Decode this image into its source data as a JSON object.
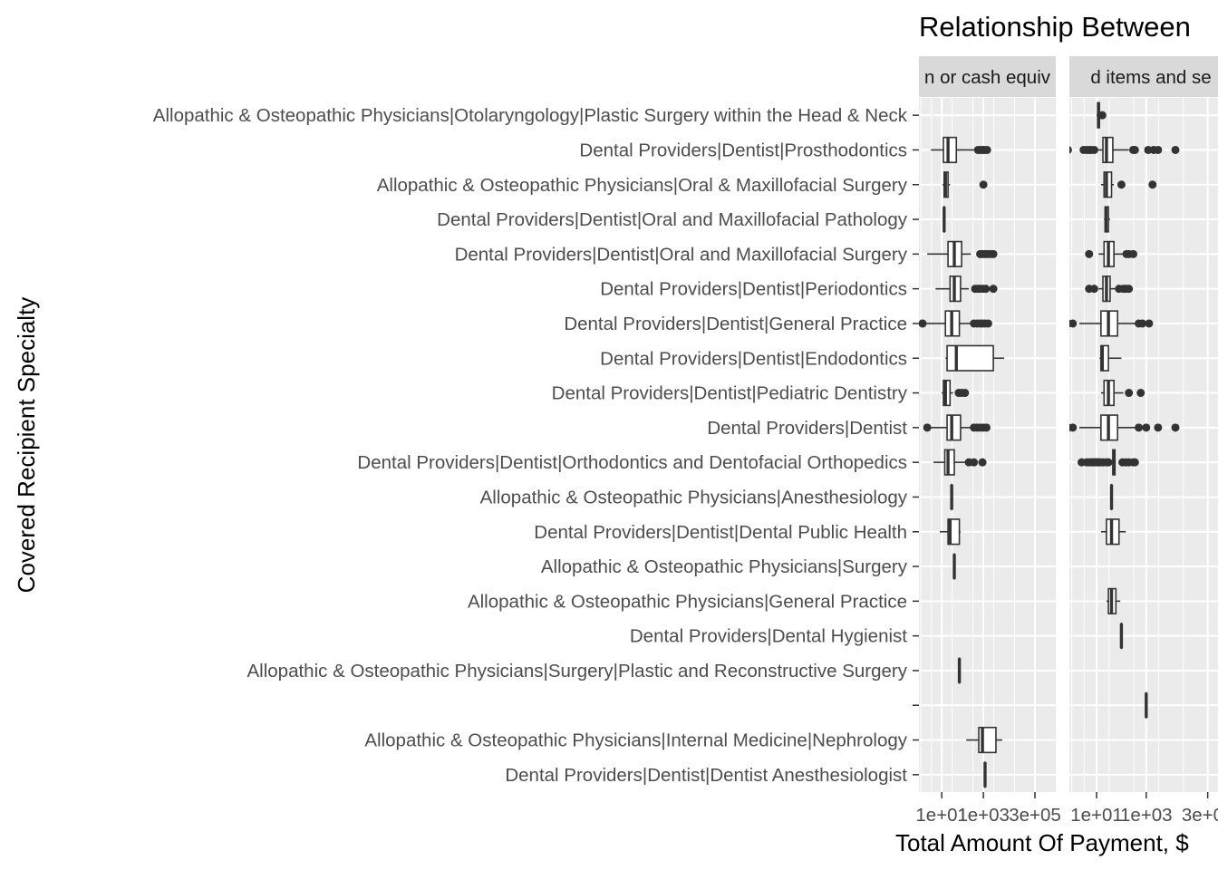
{
  "chart_data": {
    "type": "boxplot",
    "title": "Relationship Between",
    "xlabel": "Total Amount Of Payment, $",
    "ylabel": "Covered Recipient Specialty",
    "x_scale": "log10",
    "x_ticks": [
      "1e+01",
      "1e+03",
      "3e+05"
    ],
    "x_tick_values": [
      10,
      1000,
      300000
    ],
    "xlim": [
      0.8,
      3000000
    ],
    "grid": true,
    "categories": [
      "Allopathic & Osteopathic Physicians|Otolaryngology|Plastic Surgery within the Head & Neck",
      "Dental Providers|Dentist|Prosthodontics",
      "Allopathic & Osteopathic Physicians|Oral & Maxillofacial Surgery",
      "Dental Providers|Dentist|Oral and Maxillofacial Pathology",
      "Dental Providers|Dentist|Oral and Maxillofacial Surgery",
      "Dental Providers|Dentist|Periodontics",
      "Dental Providers|Dentist|General Practice",
      "Dental Providers|Dentist|Endodontics",
      "Dental Providers|Dentist|Pediatric Dentistry",
      "Dental Providers|Dentist",
      "Dental Providers|Dentist|Orthodontics and Dentofacial Orthopedics",
      "Allopathic & Osteopathic Physicians|Anesthesiology",
      "Dental Providers|Dentist|Dental Public Health",
      "Allopathic & Osteopathic Physicians|Surgery",
      "Allopathic & Osteopathic Physicians|General Practice",
      "Dental Providers|Dental Hygienist",
      "Allopathic & Osteopathic Physicians|Surgery|Plastic and Reconstructive Surgery",
      "",
      "Allopathic & Osteopathic Physicians|Internal Medicine|Nephrology",
      "Dental Providers|Dentist|Dentist Anesthesiologist"
    ],
    "panels": [
      {
        "strip_label": "n or cash equiv",
        "boxes": [
          null,
          {
            "min": 3,
            "q1": 12,
            "median": 20,
            "q3": 50,
            "max": 400,
            "outliers": [
              550,
              700,
              900,
              1100,
              1500
            ]
          },
          {
            "min": 11,
            "q1": 13,
            "median": 15,
            "q3": 20,
            "max": 25,
            "outliers": [
              1000
            ]
          },
          {
            "min": 12,
            "q1": 12.5,
            "median": 13,
            "q3": 13.5,
            "max": 14,
            "outliers": []
          },
          {
            "min": 2,
            "q1": 20,
            "median": 40,
            "q3": 90,
            "max": 250,
            "outliers": [
              700,
              900,
              1200,
              1600,
              2200,
              3000
            ]
          },
          {
            "min": 5,
            "q1": 25,
            "median": 40,
            "q3": 80,
            "max": 200,
            "outliers": [
              400,
              550,
              700,
              1000,
              1300,
              3000
            ]
          },
          {
            "min": 1.2,
            "q1": 15,
            "median": 30,
            "q3": 70,
            "max": 250,
            "outliers": [
              1.2,
              350,
              500,
              700,
              900,
              1200,
              1700
            ]
          },
          {
            "min": 15,
            "q1": 18,
            "median": 50,
            "q3": 3000,
            "max": 10000,
            "outliers": []
          },
          {
            "min": 10,
            "q1": 12,
            "median": 15,
            "q3": 25,
            "max": 35,
            "outliers": [
              65,
              90,
              130
            ]
          },
          {
            "min": 2,
            "q1": 18,
            "median": 30,
            "q3": 80,
            "max": 250,
            "outliers": [
              2,
              350,
              500,
              700,
              1000,
              1400
            ]
          },
          {
            "min": 4,
            "q1": 14,
            "median": 20,
            "q3": 40,
            "max": 130,
            "outliers": [
              200,
              350,
              900
            ]
          },
          {
            "min": 30,
            "q1": 30,
            "median": 30,
            "q3": 30,
            "max": 30,
            "outliers": []
          },
          {
            "min": 8,
            "q1": 20,
            "median": 25,
            "q3": 70,
            "max": 80,
            "outliers": []
          },
          {
            "min": 40,
            "q1": 40,
            "median": 40,
            "q3": 40,
            "max": 40,
            "outliers": []
          },
          null,
          null,
          {
            "min": 70,
            "q1": 70,
            "median": 70,
            "q3": 70,
            "max": 70,
            "outliers": []
          },
          null,
          {
            "min": 150,
            "q1": 600,
            "median": 900,
            "q3": 4000,
            "max": 8000,
            "outliers": []
          },
          {
            "min": 1200,
            "q1": 1200,
            "median": 1200,
            "q3": 1200,
            "max": 1200,
            "outliers": []
          }
        ]
      },
      {
        "strip_label": "d items and se",
        "boxes": [
          {
            "min": 10,
            "q1": 11,
            "median": 12,
            "q3": 13,
            "max": 15,
            "outliers": [
              17
            ]
          },
          {
            "min": 3,
            "q1": 18,
            "median": 25,
            "q3": 45,
            "max": 200,
            "outliers": [
              0.7,
              3,
              4,
              5,
              6,
              8,
              300,
              350,
              1200,
              2000,
              3000,
              15000
            ]
          },
          {
            "min": 15,
            "q1": 20,
            "median": 25,
            "q3": 40,
            "max": 50,
            "outliers": [
              100,
              1800
            ]
          },
          {
            "min": 20,
            "q1": 22,
            "median": 24,
            "q3": 30,
            "max": 35,
            "outliers": []
          },
          {
            "min": 12,
            "q1": 20,
            "median": 30,
            "q3": 50,
            "max": 120,
            "outliers": [
              5,
              160,
              200,
              300
            ]
          },
          {
            "min": 12,
            "q1": 18,
            "median": 25,
            "q3": 35,
            "max": 60,
            "outliers": [
              5,
              8,
              80,
              120,
              150,
              200
            ]
          },
          {
            "min": 2,
            "q1": 15,
            "median": 30,
            "q3": 70,
            "max": 400,
            "outliers": [
              0.7,
              1.1,
              500,
              700,
              1300
            ]
          },
          {
            "min": 13,
            "q1": 15,
            "median": 17,
            "q3": 30,
            "max": 100,
            "outliers": []
          },
          {
            "min": 15,
            "q1": 20,
            "median": 30,
            "q3": 50,
            "max": 120,
            "outliers": [
              200,
              600
            ]
          },
          {
            "min": 2,
            "q1": 15,
            "median": 30,
            "q3": 70,
            "max": 400,
            "outliers": [
              0.7,
              1.1,
              500,
              1000,
              3000,
              15000
            ]
          },
          {
            "min": 40,
            "q1": 45,
            "median": 50,
            "q3": 55,
            "max": 60,
            "outliers": [
              2.5,
              4,
              5,
              6,
              7,
              8,
              9,
              10,
              11,
              12,
              14,
              18,
              25,
              30,
              110,
              150,
              200,
              300,
              350
            ]
          },
          {
            "min": 40,
            "q1": 40,
            "median": 40,
            "q3": 40,
            "max": 40,
            "outliers": []
          },
          {
            "min": 15,
            "q1": 25,
            "median": 40,
            "q3": 80,
            "max": 150,
            "outliers": []
          },
          null,
          {
            "min": 25,
            "q1": 30,
            "median": 40,
            "q3": 60,
            "max": 90,
            "outliers": []
          },
          {
            "min": 100,
            "q1": 100,
            "median": 100,
            "q3": 100,
            "max": 100,
            "outliers": []
          },
          null,
          {
            "min": 1000,
            "q1": 1000,
            "median": 1000,
            "q3": 1000,
            "max": 1000,
            "outliers": []
          },
          null,
          null
        ]
      }
    ]
  }
}
